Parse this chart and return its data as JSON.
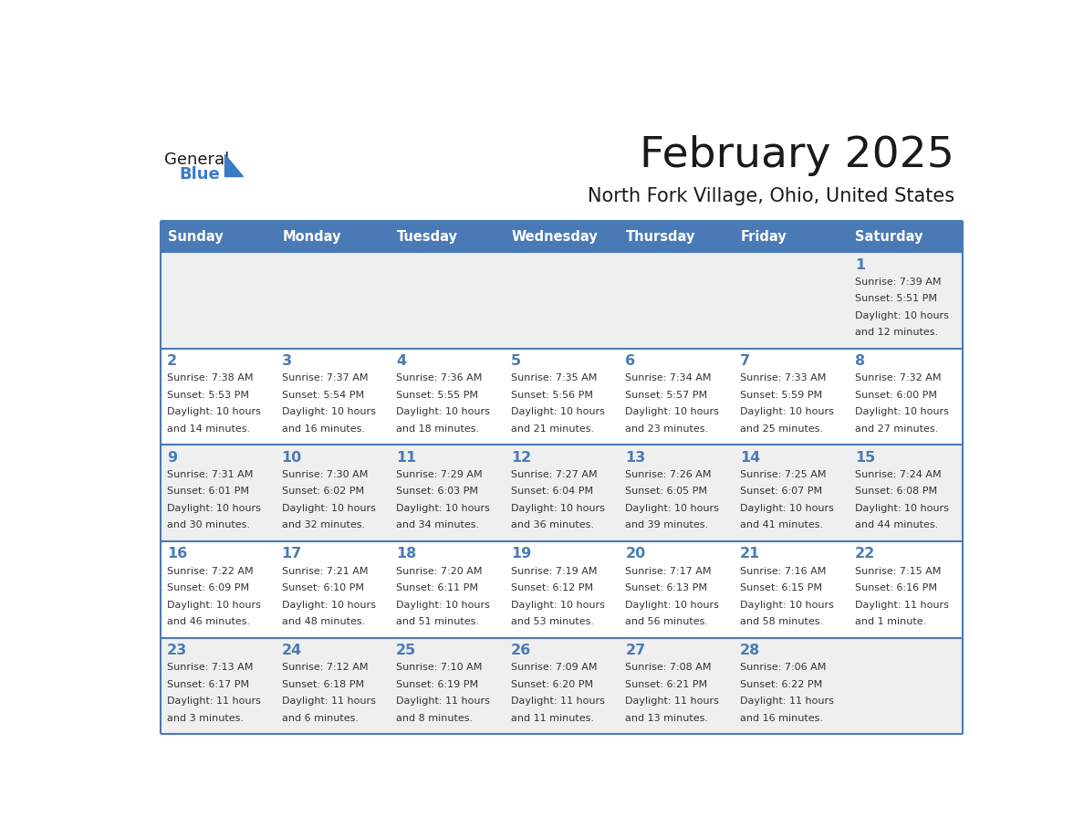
{
  "title": "February 2025",
  "subtitle": "North Fork Village, Ohio, United States",
  "days_of_week": [
    "Sunday",
    "Monday",
    "Tuesday",
    "Wednesday",
    "Thursday",
    "Friday",
    "Saturday"
  ],
  "header_bg_color": "#4a7ab5",
  "header_text_color": "#ffffff",
  "cell_bg_color_odd": "#efefef",
  "cell_bg_color_even": "#ffffff",
  "day_num_color": "#4a7ab5",
  "text_color": "#333333",
  "border_color": "#4a7ab5",
  "title_color": "#1a1a1a",
  "subtitle_color": "#1a1a1a",
  "logo_color1": "#1a1a1a",
  "logo_color2": "#3a7bc8",
  "calendar_data": [
    [
      null,
      null,
      null,
      null,
      null,
      null,
      {
        "day": 1,
        "sunrise": "7:39 AM",
        "sunset": "5:51 PM",
        "daylight": "10 hours",
        "daylight2": "and 12 minutes."
      }
    ],
    [
      {
        "day": 2,
        "sunrise": "7:38 AM",
        "sunset": "5:53 PM",
        "daylight": "10 hours",
        "daylight2": "and 14 minutes."
      },
      {
        "day": 3,
        "sunrise": "7:37 AM",
        "sunset": "5:54 PM",
        "daylight": "10 hours",
        "daylight2": "and 16 minutes."
      },
      {
        "day": 4,
        "sunrise": "7:36 AM",
        "sunset": "5:55 PM",
        "daylight": "10 hours",
        "daylight2": "and 18 minutes."
      },
      {
        "day": 5,
        "sunrise": "7:35 AM",
        "sunset": "5:56 PM",
        "daylight": "10 hours",
        "daylight2": "and 21 minutes."
      },
      {
        "day": 6,
        "sunrise": "7:34 AM",
        "sunset": "5:57 PM",
        "daylight": "10 hours",
        "daylight2": "and 23 minutes."
      },
      {
        "day": 7,
        "sunrise": "7:33 AM",
        "sunset": "5:59 PM",
        "daylight": "10 hours",
        "daylight2": "and 25 minutes."
      },
      {
        "day": 8,
        "sunrise": "7:32 AM",
        "sunset": "6:00 PM",
        "daylight": "10 hours",
        "daylight2": "and 27 minutes."
      }
    ],
    [
      {
        "day": 9,
        "sunrise": "7:31 AM",
        "sunset": "6:01 PM",
        "daylight": "10 hours",
        "daylight2": "and 30 minutes."
      },
      {
        "day": 10,
        "sunrise": "7:30 AM",
        "sunset": "6:02 PM",
        "daylight": "10 hours",
        "daylight2": "and 32 minutes."
      },
      {
        "day": 11,
        "sunrise": "7:29 AM",
        "sunset": "6:03 PM",
        "daylight": "10 hours",
        "daylight2": "and 34 minutes."
      },
      {
        "day": 12,
        "sunrise": "7:27 AM",
        "sunset": "6:04 PM",
        "daylight": "10 hours",
        "daylight2": "and 36 minutes."
      },
      {
        "day": 13,
        "sunrise": "7:26 AM",
        "sunset": "6:05 PM",
        "daylight": "10 hours",
        "daylight2": "and 39 minutes."
      },
      {
        "day": 14,
        "sunrise": "7:25 AM",
        "sunset": "6:07 PM",
        "daylight": "10 hours",
        "daylight2": "and 41 minutes."
      },
      {
        "day": 15,
        "sunrise": "7:24 AM",
        "sunset": "6:08 PM",
        "daylight": "10 hours",
        "daylight2": "and 44 minutes."
      }
    ],
    [
      {
        "day": 16,
        "sunrise": "7:22 AM",
        "sunset": "6:09 PM",
        "daylight": "10 hours",
        "daylight2": "and 46 minutes."
      },
      {
        "day": 17,
        "sunrise": "7:21 AM",
        "sunset": "6:10 PM",
        "daylight": "10 hours",
        "daylight2": "and 48 minutes."
      },
      {
        "day": 18,
        "sunrise": "7:20 AM",
        "sunset": "6:11 PM",
        "daylight": "10 hours",
        "daylight2": "and 51 minutes."
      },
      {
        "day": 19,
        "sunrise": "7:19 AM",
        "sunset": "6:12 PM",
        "daylight": "10 hours",
        "daylight2": "and 53 minutes."
      },
      {
        "day": 20,
        "sunrise": "7:17 AM",
        "sunset": "6:13 PM",
        "daylight": "10 hours",
        "daylight2": "and 56 minutes."
      },
      {
        "day": 21,
        "sunrise": "7:16 AM",
        "sunset": "6:15 PM",
        "daylight": "10 hours",
        "daylight2": "and 58 minutes."
      },
      {
        "day": 22,
        "sunrise": "7:15 AM",
        "sunset": "6:16 PM",
        "daylight": "11 hours",
        "daylight2": "and 1 minute."
      }
    ],
    [
      {
        "day": 23,
        "sunrise": "7:13 AM",
        "sunset": "6:17 PM",
        "daylight": "11 hours",
        "daylight2": "and 3 minutes."
      },
      {
        "day": 24,
        "sunrise": "7:12 AM",
        "sunset": "6:18 PM",
        "daylight": "11 hours",
        "daylight2": "and 6 minutes."
      },
      {
        "day": 25,
        "sunrise": "7:10 AM",
        "sunset": "6:19 PM",
        "daylight": "11 hours",
        "daylight2": "and 8 minutes."
      },
      {
        "day": 26,
        "sunrise": "7:09 AM",
        "sunset": "6:20 PM",
        "daylight": "11 hours",
        "daylight2": "and 11 minutes."
      },
      {
        "day": 27,
        "sunrise": "7:08 AM",
        "sunset": "6:21 PM",
        "daylight": "11 hours",
        "daylight2": "and 13 minutes."
      },
      {
        "day": 28,
        "sunrise": "7:06 AM",
        "sunset": "6:22 PM",
        "daylight": "11 hours",
        "daylight2": "and 16 minutes."
      },
      null
    ]
  ]
}
